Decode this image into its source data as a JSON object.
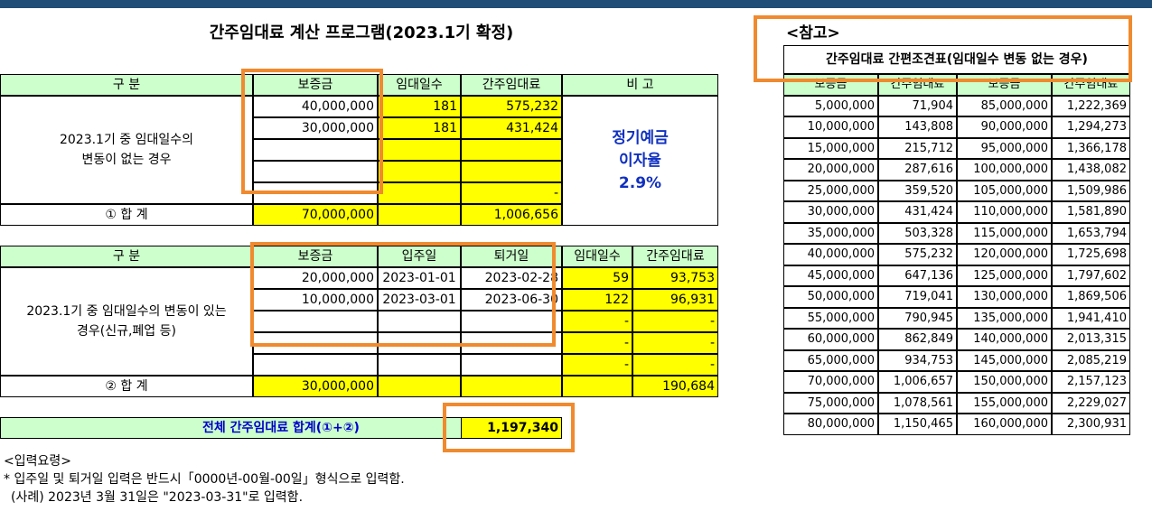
{
  "title": "간주임대료 계산 프로그램(2023.1기 확정)",
  "section1": {
    "headers": [
      "구 분",
      "보증금",
      "임대일수",
      "간주임대료",
      "비 고"
    ],
    "label": "2023.1기 중 임대일수의 변동이 없는 경우",
    "rows": [
      {
        "deposit": "40,000,000",
        "days": "181",
        "rent": "575,232"
      },
      {
        "deposit": "30,000,000",
        "days": "181",
        "rent": "431,424"
      },
      {
        "deposit": "",
        "days": "",
        "rent": ""
      },
      {
        "deposit": "",
        "days": "",
        "rent": ""
      },
      {
        "deposit": "",
        "days": "",
        "rent": "-"
      }
    ],
    "note_lines": [
      "정기예금",
      "이자율",
      "2.9%"
    ],
    "total_label": "① 합 계",
    "total_deposit": "70,000,000",
    "total_rent": "1,006,656"
  },
  "section2": {
    "headers": [
      "구 분",
      "보증금",
      "입주일",
      "퇴거일",
      "임대일수",
      "간주임대료"
    ],
    "label": "2023.1기 중 임대일수의 변동이 있는 경우(신규,폐업 등)",
    "rows": [
      {
        "deposit": "20,000,000",
        "in": "2023-01-01",
        "out": "2023-02-28",
        "days": "59",
        "rent": "93,753"
      },
      {
        "deposit": "10,000,000",
        "in": "2023-03-01",
        "out": "2023-06-30",
        "days": "122",
        "rent": "96,931"
      },
      {
        "deposit": "",
        "in": "",
        "out": "",
        "days": "-",
        "rent": "-"
      },
      {
        "deposit": "",
        "in": "",
        "out": "",
        "days": "-",
        "rent": "-"
      },
      {
        "deposit": "",
        "in": "",
        "out": "",
        "days": "-",
        "rent": "-"
      }
    ],
    "total_label": "② 합 계",
    "total_deposit": "30,000,000",
    "total_rent": "190,684"
  },
  "grand_total": {
    "label": "전체 간주임대료 합계(①+②)",
    "value": "1,197,340"
  },
  "instructions": {
    "heading": "<입력요령>",
    "line1": "* 입주일 및 퇴거일 입력은 반드시「0000년-00월-00일」형식으로 입력함.",
    "line2": "(사례) 2023년 3월 31일은 \"2023-03-31\"로 입력함."
  },
  "reference": {
    "heading": "<참고>",
    "title": "간주임대료 간편조견표(임대일수 변동 없는 경우)",
    "headers": [
      "보증금",
      "간주임대료",
      "보증금",
      "간주임대료"
    ],
    "rows": [
      [
        "5,000,000",
        "71,904",
        "85,000,000",
        "1,222,369"
      ],
      [
        "10,000,000",
        "143,808",
        "90,000,000",
        "1,294,273"
      ],
      [
        "15,000,000",
        "215,712",
        "95,000,000",
        "1,366,178"
      ],
      [
        "20,000,000",
        "287,616",
        "100,000,000",
        "1,438,082"
      ],
      [
        "25,000,000",
        "359,520",
        "105,000,000",
        "1,509,986"
      ],
      [
        "30,000,000",
        "431,424",
        "110,000,000",
        "1,581,890"
      ],
      [
        "35,000,000",
        "503,328",
        "115,000,000",
        "1,653,794"
      ],
      [
        "40,000,000",
        "575,232",
        "120,000,000",
        "1,725,698"
      ],
      [
        "45,000,000",
        "647,136",
        "125,000,000",
        "1,797,602"
      ],
      [
        "50,000,000",
        "719,041",
        "130,000,000",
        "1,869,506"
      ],
      [
        "55,000,000",
        "790,945",
        "135,000,000",
        "1,941,410"
      ],
      [
        "60,000,000",
        "862,849",
        "140,000,000",
        "2,013,315"
      ],
      [
        "65,000,000",
        "934,753",
        "145,000,000",
        "2,085,219"
      ],
      [
        "70,000,000",
        "1,006,657",
        "150,000,000",
        "2,157,123"
      ],
      [
        "75,000,000",
        "1,078,561",
        "155,000,000",
        "2,229,027"
      ],
      [
        "80,000,000",
        "1,150,465",
        "160,000,000",
        "2,300,931"
      ]
    ]
  },
  "colors": {
    "header_bg": "#ccffcc",
    "input_bg": "#ffff00",
    "highlight_border": "#f08a2e",
    "note_text": "#1030c0",
    "top_bar": "#1f4e79"
  }
}
